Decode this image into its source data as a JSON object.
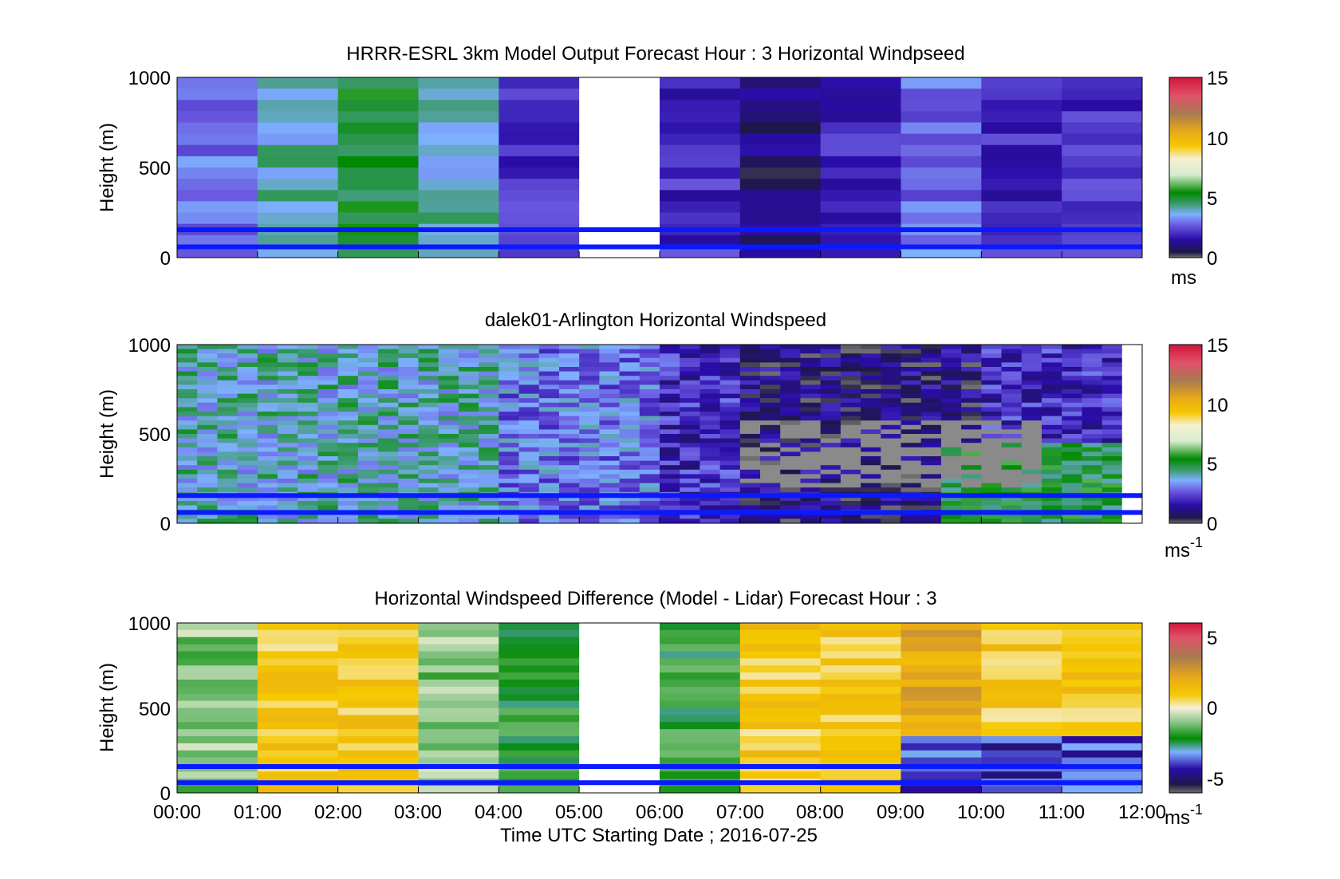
{
  "figure": {
    "xlabel": "Time UTC  Starting Date ; 2016-07-25",
    "x_ticks": [
      "00:00",
      "01:00",
      "02:00",
      "03:00",
      "04:00",
      "05:00",
      "06:00",
      "07:00",
      "08:00",
      "09:00",
      "10:00",
      "11:00",
      "12:00"
    ],
    "y_ticks": [
      "0",
      "500",
      "1000"
    ],
    "reference_lines": {
      "color": "#0a1aff",
      "heights_m": [
        60,
        155
      ]
    }
  },
  "chart_data": [
    {
      "type": "heatmap",
      "title": "HRRR-ESRL 3km Model Output   Forecast Hour : 3 Horizontal Windpseed",
      "ylabel": "Height (m)",
      "ylim": [
        0,
        1000
      ],
      "x_range_hours": [
        0,
        12
      ],
      "colorbar": {
        "range": [
          0,
          15
        ],
        "ticks": [
          "0",
          "5",
          "10",
          "15"
        ],
        "unit": "ms"
      },
      "hourly_mean_ms": [
        3,
        4,
        5,
        4,
        2,
        null,
        2,
        1,
        2,
        3,
        2,
        2
      ],
      "missing_hours": [
        5
      ]
    },
    {
      "type": "heatmap",
      "title": "dalek01-Arlington  Horizontal Windspeed",
      "ylabel": "Height (m)",
      "ylim": [
        0,
        1000
      ],
      "x_range_hours": [
        0,
        12
      ],
      "colorbar": {
        "range": [
          0,
          15
        ],
        "ticks": [
          "0",
          "5",
          "10",
          "15"
        ],
        "unit": "ms",
        "unit_exp": "-1"
      },
      "hourly_mean_ms": [
        4,
        4,
        4,
        4,
        3,
        3,
        2,
        1,
        1,
        1,
        2,
        2
      ],
      "gray_region": "no data"
    },
    {
      "type": "heatmap",
      "title": "Horizontal Windspeed Difference (Model - Lidar) Forecast Hour : 3",
      "ylabel": "Height (m)",
      "ylim": [
        0,
        1000
      ],
      "x_range_hours": [
        0,
        12
      ],
      "colorbar": {
        "range": [
          -6,
          6
        ],
        "ticks": [
          "-5",
          "0",
          "5"
        ],
        "unit": "ms",
        "unit_exp": "-1"
      },
      "hourly_mean_diff_ms": [
        -1,
        1,
        1,
        -1,
        -2,
        null,
        -2,
        1,
        1,
        2,
        1,
        1
      ],
      "missing_hours": [
        5
      ]
    }
  ]
}
